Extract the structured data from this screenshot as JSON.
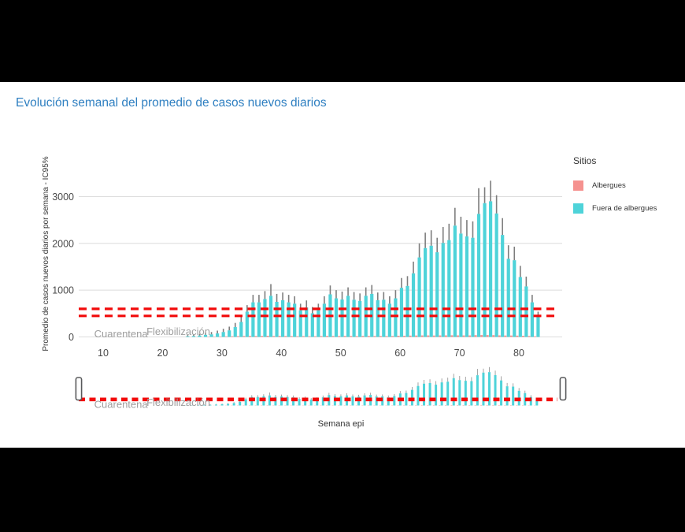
{
  "title": "Evolución semanal del promedio de casos nuevos diarios",
  "title_color": "#2e7fc1",
  "legend": {
    "title": "Sitios",
    "items": [
      {
        "label": "Albergues",
        "color": "#f5928f"
      },
      {
        "label": "Fuera de albergues",
        "color": "#4ed3d9"
      }
    ]
  },
  "chart_data": {
    "type": "bar",
    "title": "Evolución semanal del promedio de casos nuevos diarios",
    "xlabel": "Semana epi",
    "ylabel": "Promedio de casos nuevos diarios por semana - IC95%",
    "x_ticks": [
      10,
      20,
      30,
      40,
      50,
      60,
      70,
      80
    ],
    "y_ticks": [
      0,
      1000,
      2000,
      3000
    ],
    "ylim": [
      0,
      3400
    ],
    "xlim": [
      6,
      87
    ],
    "grid": true,
    "legend_position": "right",
    "weeks": [
      24,
      25,
      26,
      27,
      28,
      29,
      30,
      31,
      32,
      33,
      34,
      35,
      36,
      37,
      38,
      39,
      40,
      41,
      42,
      43,
      44,
      45,
      46,
      47,
      48,
      49,
      50,
      51,
      52,
      53,
      54,
      55,
      56,
      57,
      58,
      59,
      60,
      61,
      62,
      63,
      64,
      65,
      66,
      67,
      68,
      69,
      70,
      71,
      72,
      73,
      74,
      75,
      76,
      77,
      78,
      79,
      80,
      81,
      82,
      83
    ],
    "series": [
      {
        "name": "Albergues",
        "color": "#f5928f",
        "values": [
          0,
          0,
          0,
          0,
          8,
          8,
          10,
          12,
          15,
          18,
          20,
          22,
          20,
          22,
          25,
          20,
          22,
          20,
          18,
          15,
          18,
          15,
          15,
          18,
          22,
          20,
          20,
          22,
          20,
          18,
          22,
          22,
          20,
          20,
          18,
          20,
          25,
          25,
          28,
          30,
          32,
          32,
          30,
          32,
          33,
          35,
          33,
          32,
          32,
          38,
          40,
          40,
          38,
          33,
          30,
          30,
          28,
          25,
          20,
          15
        ]
      },
      {
        "name": "Fuera de albergues",
        "color": "#4ed3d9",
        "values": [
          15,
          20,
          30,
          45,
          55,
          75,
          105,
          140,
          210,
          320,
          540,
          740,
          740,
          810,
          880,
          750,
          785,
          740,
          710,
          570,
          630,
          505,
          570,
          710,
          910,
          825,
          800,
          880,
          795,
          770,
          880,
          920,
          785,
          795,
          710,
          825,
          1050,
          1090,
          1360,
          1700,
          1900,
          1950,
          1810,
          2010,
          2070,
          2380,
          2210,
          2150,
          2120,
          2630,
          2860,
          2900,
          2640,
          2180,
          1670,
          1640,
          1280,
          1080,
          740,
          430
        ],
        "upper_ci": [
          40,
          50,
          65,
          90,
          105,
          135,
          175,
          220,
          300,
          430,
          680,
          900,
          900,
          980,
          1130,
          920,
          950,
          900,
          870,
          710,
          780,
          640,
          710,
          870,
          1100,
          1000,
          970,
          1060,
          960,
          930,
          1060,
          1110,
          950,
          960,
          870,
          1000,
          1260,
          1300,
          1610,
          2000,
          2230,
          2280,
          2120,
          2350,
          2420,
          2760,
          2570,
          2500,
          2470,
          3180,
          3200,
          3340,
          3030,
          2540,
          1960,
          1930,
          1520,
          1290,
          900,
          540
        ]
      }
    ],
    "thresholds": {
      "color": "#f20a0a",
      "style": "dashed",
      "values": [
        600,
        450
      ]
    },
    "annotations": [
      {
        "text": "Cuarentena",
        "week": 8.5
      },
      {
        "text": "Flexibilización",
        "week": 17.3
      }
    ]
  },
  "overview": {
    "description": "range-slider miniature of same series",
    "handle_count": 2,
    "threshold_values": [
      600,
      450
    ]
  },
  "colors": {
    "grid": "#dcdcdc",
    "axis_text": "#4a4a4a",
    "annotation_text": "#9e9e9e",
    "error_bar": "#7d7d7d",
    "threshold": "#f20a0a"
  }
}
